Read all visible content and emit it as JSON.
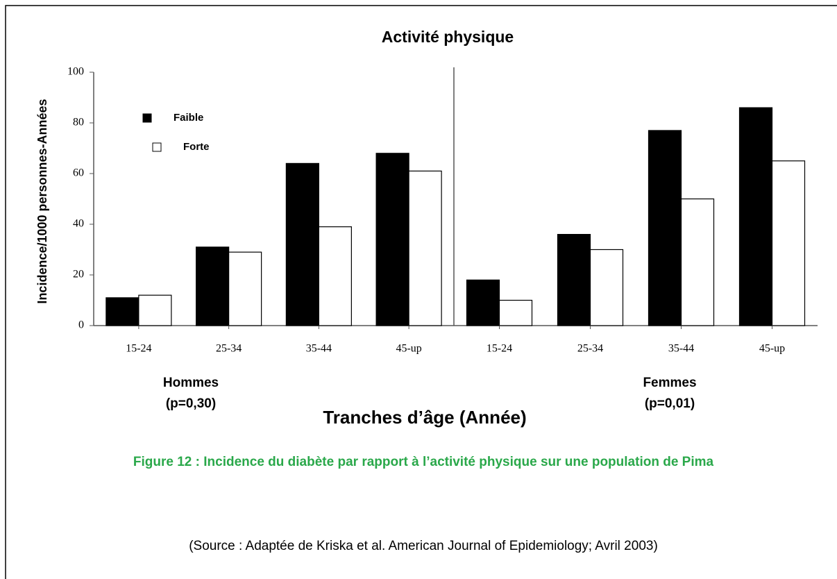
{
  "chart_data": {
    "type": "bar",
    "title": "Activité physique",
    "y_label": "Incidence/1000 personnes-Années",
    "x_label": "Tranches d’âge (Année)",
    "categories": [
      "15-24",
      "25-34",
      "35-44",
      "45-up",
      "15-24",
      "25-34",
      "35-44",
      "45-up"
    ],
    "groups": [
      {
        "name": "Hommes",
        "note": "(p=0,30)"
      },
      {
        "name": "Femmes",
        "note": "(p=0,01)"
      }
    ],
    "series": [
      {
        "name": "Faible",
        "color": "#000000",
        "values": [
          11,
          31,
          64,
          68,
          18,
          36,
          77,
          86
        ]
      },
      {
        "name": "Forte",
        "color": "#ffffff",
        "values": [
          12,
          29,
          39,
          61,
          10,
          30,
          50,
          65
        ]
      }
    ],
    "ylim": [
      0,
      100
    ],
    "yticks": [
      0,
      20,
      40,
      60,
      80,
      100
    ],
    "legend": "upper-left"
  },
  "caption": "Figure 12 : Incidence du diabète par rapport à l’activité physique sur une population de Pima",
  "source": "(Source : Adaptée de Kriska et al. American Journal of Epidemiology; Avril 2003)"
}
